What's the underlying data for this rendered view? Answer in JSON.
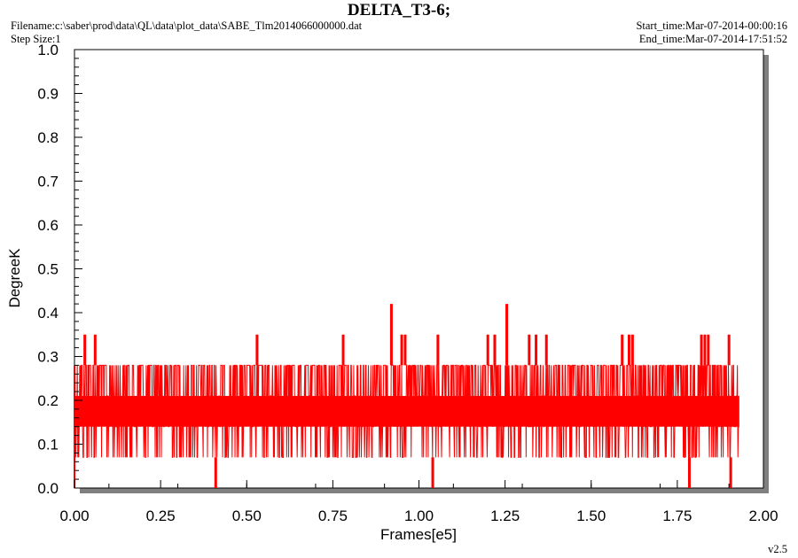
{
  "header": {
    "title": "DELTA_T3-6;",
    "filename": "Filename:c:\\saber\\prod\\data\\QL\\data\\plot_data\\SABE_Tlm2014066000000.dat",
    "step_size": "Step Size:1",
    "start_time": "Start_time:Mar-07-2014-00:00:16",
    "end_time": "End_time:Mar-07-2014-17:51:52",
    "version": "v2.5"
  },
  "colors": {
    "series": "#ff0000",
    "frame_shadow": "#808080"
  },
  "chart_data": {
    "type": "line",
    "title": "DELTA_T3-6;",
    "xlabel": "Frames[e5]",
    "ylabel": "DegreeK",
    "xlim": [
      0,
      2.0
    ],
    "ylim": [
      0,
      1.0
    ],
    "x_ticks": [
      "0.00",
      "0.25",
      "0.50",
      "0.75",
      "1.00",
      "1.25",
      "1.50",
      "1.75",
      "2.00"
    ],
    "y_ticks": [
      "0.0",
      "0.1",
      "0.2",
      "0.3",
      "0.4",
      "0.5",
      "0.6",
      "0.7",
      "0.8",
      "0.9",
      "1.0"
    ],
    "grid": false,
    "series": [
      {
        "x_range": [
          0,
          1.93
        ],
        "typical_range": [
          0.07,
          0.28
        ],
        "quantized_levels": [
          0.07,
          0.14,
          0.21,
          0.28
        ],
        "spikes": [
          {
            "x": 0.03,
            "y": 0.35
          },
          {
            "x": 0.06,
            "y": 0.35
          },
          {
            "x": 0.53,
            "y": 0.35
          },
          {
            "x": 0.78,
            "y": 0.35
          },
          {
            "x": 0.92,
            "y": 0.42
          },
          {
            "x": 0.95,
            "y": 0.35
          },
          {
            "x": 0.96,
            "y": 0.35
          },
          {
            "x": 1.055,
            "y": 0.35
          },
          {
            "x": 1.2,
            "y": 0.35
          },
          {
            "x": 1.22,
            "y": 0.35
          },
          {
            "x": 1.255,
            "y": 0.42
          },
          {
            "x": 1.32,
            "y": 0.35
          },
          {
            "x": 1.34,
            "y": 0.35
          },
          {
            "x": 1.37,
            "y": 0.35
          },
          {
            "x": 1.59,
            "y": 0.35
          },
          {
            "x": 1.61,
            "y": 0.35
          },
          {
            "x": 1.62,
            "y": 0.35
          },
          {
            "x": 1.82,
            "y": 0.35
          },
          {
            "x": 1.83,
            "y": 0.35
          },
          {
            "x": 1.84,
            "y": 0.35
          },
          {
            "x": 1.9,
            "y": 0.35
          }
        ],
        "dips": [
          {
            "x": 0.41,
            "y": 0.0
          },
          {
            "x": 1.04,
            "y": 0.0
          },
          {
            "x": 1.785,
            "y": 0.0
          },
          {
            "x": 1.905,
            "y": 0.0
          }
        ]
      }
    ]
  }
}
